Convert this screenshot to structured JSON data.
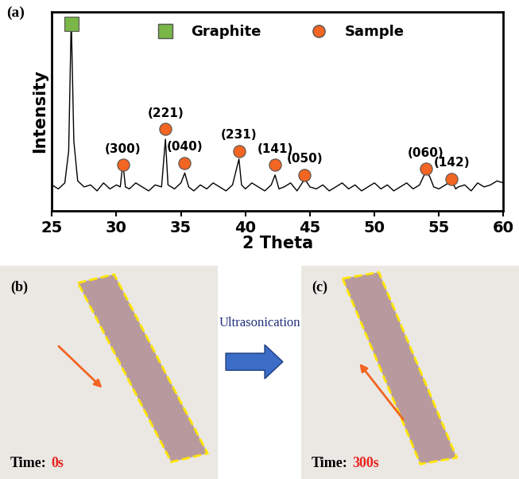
{
  "chart_data": {
    "type": "line",
    "panel_label": "(a)",
    "xlabel": "2 Theta",
    "ylabel": "Intensity",
    "x": [
      25.0,
      25.5,
      26.0,
      26.3,
      26.5,
      26.7,
      27.0,
      27.5,
      28.0,
      28.5,
      29.0,
      29.5,
      30.0,
      30.3,
      30.5,
      30.7,
      31.0,
      31.5,
      32.0,
      32.5,
      33.0,
      33.5,
      33.8,
      34.0,
      34.5,
      35.0,
      35.3,
      35.6,
      36.0,
      36.5,
      37.0,
      37.5,
      38.0,
      38.5,
      39.0,
      39.5,
      39.7,
      40.0,
      40.5,
      41.0,
      41.5,
      42.0,
      42.3,
      42.6,
      43.0,
      43.5,
      44.0,
      44.6,
      45.0,
      45.5,
      46.0,
      46.5,
      47.0,
      47.5,
      48.0,
      48.5,
      49.0,
      49.5,
      50.0,
      50.5,
      51.0,
      51.5,
      52.0,
      52.5,
      53.0,
      53.5,
      54.0,
      54.3,
      54.6,
      55.0,
      55.5,
      56.0,
      56.3,
      56.5,
      57.0,
      57.5,
      58.0,
      58.5,
      59.0,
      59.5,
      60.0
    ],
    "values": [
      13,
      11,
      14,
      30,
      97,
      35,
      15,
      12,
      13,
      10,
      14,
      11,
      13,
      12,
      24,
      12,
      11,
      14,
      12,
      10,
      13,
      12,
      36,
      13,
      11,
      14,
      19,
      12,
      10,
      13,
      11,
      14,
      12,
      10,
      13,
      26,
      13,
      11,
      14,
      12,
      10,
      13,
      18,
      11,
      12,
      14,
      10,
      16,
      12,
      11,
      13,
      10,
      12,
      14,
      11,
      13,
      10,
      12,
      14,
      11,
      13,
      10,
      12,
      14,
      11,
      13,
      20,
      17,
      12,
      11,
      13,
      15,
      11,
      12,
      13,
      10,
      14,
      12,
      13,
      15,
      14
    ],
    "color": "#000000",
    "xlim": [
      25,
      60
    ],
    "xticks": [
      25,
      30,
      35,
      40,
      45,
      50,
      55,
      60
    ],
    "ylim": [
      0,
      100
    ],
    "tick_labels": "x",
    "legend": "upper center",
    "series": [
      {
        "name": "Graphite",
        "color": "#7ab648",
        "marker": "square",
        "peaks": [
          {
            "x": 26.5,
            "y": 94
          }
        ]
      },
      {
        "name": "Sample",
        "color": "#f26522",
        "marker": "circle",
        "peaks": [
          {
            "label": "(300)",
            "x": 30.5,
            "y": 23
          },
          {
            "label": "(221)",
            "x": 33.8,
            "y": 41
          },
          {
            "label": "(040)",
            "x": 35.3,
            "y": 24
          },
          {
            "label": "(231)",
            "x": 39.5,
            "y": 30
          },
          {
            "label": "(141)",
            "x": 42.3,
            "y": 23
          },
          {
            "label": "(050)",
            "x": 44.6,
            "y": 18
          },
          {
            "label": "(060)",
            "x": 54.0,
            "y": 21
          },
          {
            "label": "(142)",
            "x": 56.0,
            "y": 16
          }
        ]
      }
    ]
  },
  "arrow_label": "Ultrasonication",
  "panels": [
    {
      "label": "(b)",
      "time_label": "Time:",
      "time": "0s"
    },
    {
      "label": "(c)",
      "time_label": "Time:",
      "time": "300s"
    }
  ]
}
